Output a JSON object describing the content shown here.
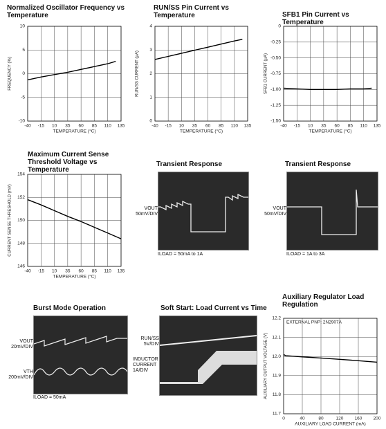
{
  "chart_data": [
    {
      "type": "line",
      "title": "Normalized Oscillator Frequency vs Temperature",
      "xlabel": "TEMPERATURE (°C)",
      "ylabel": "FREQUENCY (%)",
      "x": [
        -40,
        -15,
        10,
        35,
        60,
        85,
        110,
        125
      ],
      "values": [
        -1.3,
        -0.7,
        -0.2,
        0.3,
        0.9,
        1.5,
        2.1,
        2.6
      ],
      "color": "#000000",
      "xlim": [
        -40,
        135
      ],
      "xticks": [
        -40,
        -15,
        10,
        35,
        60,
        85,
        110,
        135
      ],
      "ylim": [
        -10,
        10
      ],
      "yticks": [
        -10,
        -5,
        0,
        5,
        10
      ],
      "grid": true
    },
    {
      "type": "line",
      "title": "RUN/SS Pin Current vs Temperature",
      "xlabel": "TEMPERATURE (°C)",
      "ylabel": "RUN/SS CURRENT (µA)",
      "x": [
        -40,
        -15,
        10,
        35,
        60,
        85,
        110,
        125
      ],
      "values": [
        2.6,
        2.73,
        2.86,
        2.99,
        3.12,
        3.25,
        3.38,
        3.45
      ],
      "color": "#000000",
      "xlim": [
        -40,
        135
      ],
      "xticks": [
        -40,
        -15,
        10,
        35,
        60,
        85,
        110,
        135
      ],
      "ylim": [
        0,
        4
      ],
      "yticks": [
        0,
        1,
        2,
        3,
        4
      ],
      "grid": true
    },
    {
      "type": "line",
      "title": "SFB1 Pin Current vs Temperature",
      "xlabel": "TEMPERATURE (°C)",
      "ylabel": "SFB1 CURRENT (µA)",
      "x": [
        -40,
        -15,
        10,
        35,
        60,
        85,
        110,
        125
      ],
      "values": [
        -0.98,
        -0.99,
        -1.0,
        -1.0,
        -1.0,
        -0.99,
        -0.99,
        -0.98
      ],
      "color": "#000000",
      "xlim": [
        -40,
        135
      ],
      "xticks": [
        -40,
        -15,
        10,
        35,
        60,
        85,
        110,
        135
      ],
      "ylim": [
        -1.5,
        0
      ],
      "yticks": [
        0,
        {
          "value": -0.25,
          "label": "-0.25"
        },
        {
          "value": -0.5,
          "label": "-0.50"
        },
        {
          "value": -0.75,
          "label": "-0.75"
        },
        {
          "value": -1,
          "label": "-1.00"
        },
        {
          "value": -1.25,
          "label": "-1.25"
        },
        {
          "value": -1.5,
          "label": "-1.50"
        }
      ],
      "grid": true
    },
    {
      "type": "line",
      "title": "Maximum Current Sense Threshold Voltage vs Temperature",
      "xlabel": "TEMPERATURE (°C)",
      "ylabel": "CURRENT SENSE THRESHOLD (mV)",
      "x": [
        -40,
        -15,
        10,
        35,
        60,
        85,
        110,
        135
      ],
      "values": [
        151.8,
        151.35,
        150.85,
        150.35,
        149.9,
        149.4,
        148.9,
        148.4
      ],
      "color": "#000000",
      "xlim": [
        -40,
        135
      ],
      "xticks": [
        -40,
        -15,
        10,
        35,
        60,
        85,
        110,
        135
      ],
      "ylim": [
        146,
        154
      ],
      "yticks": [
        146,
        148,
        150,
        152,
        154
      ],
      "grid": true
    },
    {
      "type": "line",
      "title": "Auxiliary Regulator Load Regulation",
      "xlabel": "AUXILIARY LOAD CURRENT (mA)",
      "ylabel": "AUXILIARY OUTPUT VOLTAGE (V)",
      "annotation": "EXTERNAL PNP: 2N2907A",
      "x": [
        0,
        5,
        40,
        80,
        120,
        160,
        200
      ],
      "values": [
        12.01,
        12.004,
        11.998,
        11.992,
        11.985,
        11.978,
        11.97
      ],
      "color": "#000000",
      "xlim": [
        0,
        200
      ],
      "xticks": [
        0,
        40,
        80,
        120,
        160,
        200
      ],
      "ylim": [
        11.7,
        12.2
      ],
      "yticks": [
        11.7,
        11.8,
        11.9,
        {
          "value": 12,
          "label": "12.0"
        },
        12.1,
        12.2
      ],
      "grid": true
    }
  ],
  "scopes": [
    {
      "title": "Transient Response",
      "labels": [
        "VOUT 50mV/DIV",
        "ILOAD = 50mA to 1A"
      ]
    },
    {
      "title": "Transient Response",
      "labels": [
        "VOUT 50mV/DIV",
        "ILOAD = 1A to 3A"
      ]
    },
    {
      "title": "Burst Mode Operation",
      "labels": [
        "VOUT 20mV/DIV",
        "VTH 200mV/DIV",
        "ILOAD = 50mA"
      ]
    },
    {
      "title": "Soft Start: Load Current vs Time",
      "labels": [
        "RUN/SS 5V/DIV",
        "INDUCTOR CURRENT 1A/DIV"
      ]
    }
  ]
}
